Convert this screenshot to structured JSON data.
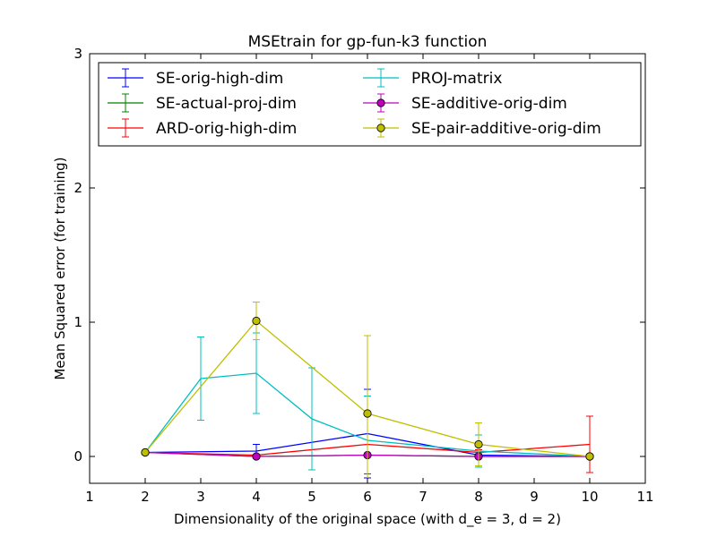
{
  "chart_data": {
    "type": "line",
    "title": "MSEtrain for gp-fun-k3 function",
    "xlabel": "Dimensionality of the original space (with d_e = 3, d = 2)",
    "ylabel": "Mean Squared error (for training)",
    "xlim": [
      1,
      11
    ],
    "ylim": [
      -0.2,
      3
    ],
    "xticks": [
      1,
      2,
      3,
      4,
      5,
      6,
      7,
      8,
      9,
      10,
      11
    ],
    "yticks": [
      0,
      1,
      2,
      3
    ],
    "grid": false,
    "legend_position": "top",
    "series": [
      {
        "name": "SE-orig-high-dim",
        "color": "#0000ff",
        "marker": "none",
        "points": [
          {
            "x": 2,
            "y": 0.03,
            "err": 0.0
          },
          {
            "x": 4,
            "y": 0.04,
            "err": 0.05
          },
          {
            "x": 6,
            "y": 0.17,
            "err": 0.33
          },
          {
            "x": 8,
            "y": 0.01,
            "err": 0.01
          },
          {
            "x": 10,
            "y": 0.0,
            "err": 0.0
          }
        ]
      },
      {
        "name": "SE-actual-proj-dim",
        "color": "#008000",
        "marker": "none",
        "points": [
          {
            "x": 2,
            "y": 0.03,
            "err": 0.0
          },
          {
            "x": 4,
            "y": 0.0,
            "err": 0.0
          },
          {
            "x": 6,
            "y": 0.01,
            "err": 0.0
          },
          {
            "x": 8,
            "y": 0.0,
            "err": 0.0
          },
          {
            "x": 10,
            "y": 0.0,
            "err": 0.0
          }
        ]
      },
      {
        "name": "ARD-orig-high-dim",
        "color": "#ff0000",
        "marker": "none",
        "points": [
          {
            "x": 2,
            "y": 0.03,
            "err": 0.0
          },
          {
            "x": 4,
            "y": 0.01,
            "err": 0.0
          },
          {
            "x": 6,
            "y": 0.09,
            "err": 0.22
          },
          {
            "x": 8,
            "y": 0.03,
            "err": 0.02
          },
          {
            "x": 10,
            "y": 0.09,
            "err": 0.21
          }
        ]
      },
      {
        "name": "PROJ-matrix",
        "color": "#00bfbf",
        "marker": "none",
        "points": [
          {
            "x": 2,
            "y": 0.03,
            "err": 0.0
          },
          {
            "x": 3,
            "y": 0.58,
            "err": 0.31
          },
          {
            "x": 4,
            "y": 0.62,
            "err": 0.3
          },
          {
            "x": 5,
            "y": 0.28,
            "err": 0.38
          },
          {
            "x": 6,
            "y": 0.12,
            "err": 0.33
          },
          {
            "x": 8,
            "y": 0.04,
            "err": 0.12
          },
          {
            "x": 10,
            "y": 0.0,
            "err": 0.0
          }
        ]
      },
      {
        "name": "SE-additive-orig-dim",
        "color": "#bf00bf",
        "marker": "circle",
        "points": [
          {
            "x": 2,
            "y": 0.03,
            "err": 0.0
          },
          {
            "x": 4,
            "y": 0.0,
            "err": 0.0
          },
          {
            "x": 6,
            "y": 0.01,
            "err": 0.0
          },
          {
            "x": 8,
            "y": 0.0,
            "err": 0.0
          },
          {
            "x": 10,
            "y": 0.0,
            "err": 0.0
          }
        ]
      },
      {
        "name": "SE-pair-additive-orig-dim",
        "color": "#bfbf00",
        "marker": "circle",
        "points": [
          {
            "x": 2,
            "y": 0.03,
            "err": 0.0
          },
          {
            "x": 4,
            "y": 1.01,
            "err": 0.14
          },
          {
            "x": 6,
            "y": 0.32,
            "err": 0.58
          },
          {
            "x": 8,
            "y": 0.09,
            "err": 0.16
          },
          {
            "x": 10,
            "y": 0.0,
            "err": 0.0
          }
        ]
      }
    ]
  }
}
